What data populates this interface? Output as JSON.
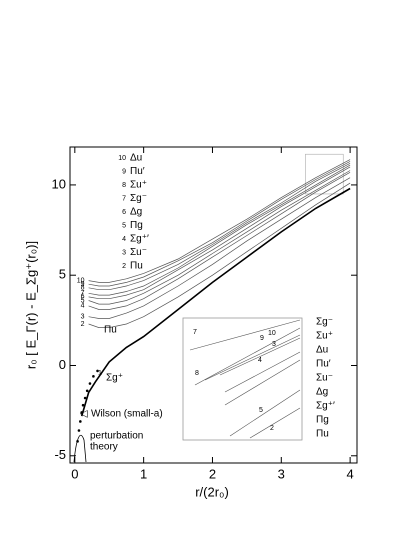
{
  "chart_data": {
    "type": "line",
    "xlabel": "r/(2r₀)",
    "ylabel": "r₀ [ E_Γ(r) - E_Σg⁺(r₀)]",
    "xlim": [
      -0.07,
      4.1
    ],
    "ylim": [
      -5.4,
      12.1
    ],
    "xticks": [
      0,
      1,
      2,
      3,
      4
    ],
    "yticks": [
      -5,
      0,
      5,
      10
    ],
    "grid": false,
    "color": "#555555",
    "series": [
      {
        "name": "Σg⁺",
        "label": "1",
        "color": "#000000",
        "x": [
          0.1,
          0.2,
          0.3,
          0.5,
          0.75,
          1,
          1.5,
          2,
          2.5,
          3,
          3.5,
          4
        ],
        "values": [
          -2.8,
          -1.5,
          -0.9,
          0.2,
          1.0,
          1.6,
          3.1,
          4.6,
          6.0,
          7.4,
          8.7,
          9.8
        ]
      },
      {
        "name": "Πu",
        "label": "2",
        "x": [
          0.2,
          0.35,
          0.5,
          0.75,
          1,
          1.5,
          2,
          2.5,
          3,
          3.5,
          4
        ],
        "values": [
          2.3,
          2.1,
          2.1,
          2.3,
          2.7,
          3.8,
          5.0,
          6.3,
          7.6,
          8.9,
          10.1
        ]
      },
      {
        "name": "Σu⁻",
        "label": "3",
        "x": [
          0.2,
          0.35,
          0.5,
          0.75,
          1,
          1.5,
          2,
          2.5,
          3,
          3.5,
          4
        ],
        "values": [
          2.7,
          2.6,
          2.6,
          2.9,
          3.3,
          4.4,
          5.6,
          6.9,
          8.1,
          9.3,
          10.4
        ]
      },
      {
        "name": "Σg⁺′",
        "label": "4",
        "x": [
          0.2,
          0.35,
          0.5,
          0.75,
          1,
          1.5,
          2,
          2.5,
          3,
          3.5,
          4
        ],
        "values": [
          3.3,
          3.1,
          3.1,
          3.3,
          3.7,
          4.8,
          6.0,
          7.2,
          8.4,
          9.6,
          10.7
        ]
      },
      {
        "name": "Πg",
        "label": "5",
        "x": [
          0.2,
          0.35,
          0.5,
          0.75,
          1,
          1.5,
          2,
          2.5,
          3,
          3.5,
          4
        ],
        "values": [
          3.6,
          3.4,
          3.4,
          3.6,
          4.0,
          5.0,
          6.2,
          7.4,
          8.6,
          9.7,
          10.8
        ]
      },
      {
        "name": "Δg",
        "label": "6",
        "x": [
          0.2,
          0.35,
          0.5,
          0.75,
          1,
          1.5,
          2,
          2.5,
          3,
          3.5,
          4
        ],
        "values": [
          3.8,
          3.7,
          3.7,
          3.9,
          4.2,
          5.3,
          6.4,
          7.6,
          8.8,
          9.9,
          11.0
        ]
      },
      {
        "name": "Σg⁻",
        "label": "7",
        "x": [
          0.2,
          0.35,
          0.5,
          0.75,
          1,
          1.5,
          2,
          2.5,
          3,
          3.5,
          4
        ],
        "values": [
          4.0,
          3.9,
          3.9,
          4.1,
          4.4,
          5.4,
          6.6,
          7.8,
          8.9,
          10.0,
          11.1
        ]
      },
      {
        "name": "Σu⁺",
        "label": "8",
        "x": [
          0.2,
          0.35,
          0.5,
          0.75,
          1,
          1.5,
          2,
          2.5,
          3,
          3.5,
          4
        ],
        "values": [
          4.3,
          4.2,
          4.2,
          4.4,
          4.7,
          5.6,
          6.7,
          7.9,
          9.0,
          10.2,
          11.2
        ]
      },
      {
        "name": "Πu′",
        "label": "9",
        "x": [
          0.2,
          0.35,
          0.5,
          0.75,
          1,
          1.5,
          2,
          2.5,
          3,
          3.5,
          4
        ],
        "values": [
          4.5,
          4.4,
          4.4,
          4.6,
          4.9,
          5.8,
          6.8,
          8.0,
          9.2,
          10.3,
          11.3
        ]
      },
      {
        "name": "Δu",
        "label": "10",
        "x": [
          0.2,
          0.35,
          0.5,
          0.75,
          1,
          1.5,
          2,
          2.5,
          3,
          3.5,
          4
        ],
        "values": [
          4.7,
          4.6,
          4.6,
          4.8,
          5.1,
          5.9,
          7.0,
          8.1,
          9.3,
          10.4,
          11.4
        ]
      }
    ],
    "points": {
      "x": [
        0.04,
        0.06,
        0.08,
        0.1,
        0.12,
        0.15,
        0.18,
        0.22,
        0.27,
        0.33
      ],
      "values": [
        -4.2,
        -3.6,
        -3.1,
        -2.6,
        -2.2,
        -1.8,
        -1.4,
        -1.0,
        -0.6,
        -0.3
      ]
    },
    "annotations": {
      "wilson": "Wilson (small-a)",
      "perturbation": [
        "perturbation",
        "theory"
      ]
    }
  }
}
